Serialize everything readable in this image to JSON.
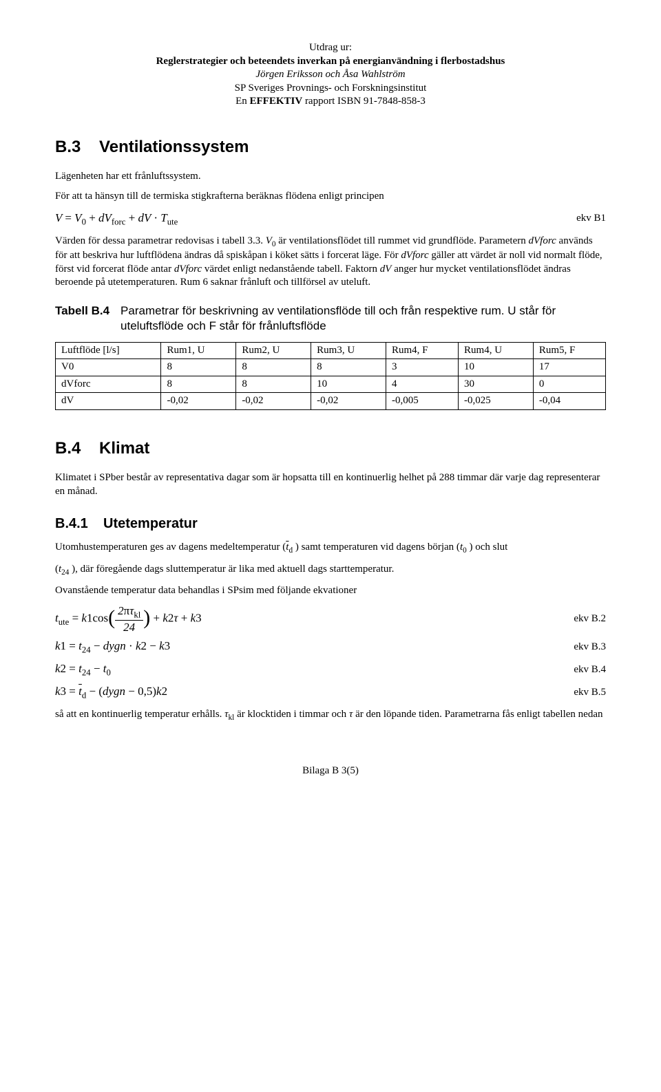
{
  "header": {
    "line1": "Utdrag ur:",
    "line2": "Reglerstrategier och beteendets inverkan på energianvändning i flerbostadshus",
    "line3": "Jörgen Eriksson och Åsa Wahlström",
    "line4": "SP Sveriges Provnings- och Forskningsinstitut",
    "line5_a": "En ",
    "line5_b": "EFFEKTIV",
    "line5_c": " rapport ISBN 91-7848-858-3"
  },
  "sectionB3": {
    "number": "B.3",
    "title": "Ventilationssystem",
    "para1": "Lägenheten har ett frånluftssystem.",
    "para2": "För att ta hänsyn till de termiska stigkrafterna beräknas flödena enligt principen",
    "eq1_label": "ekv  B1",
    "para3_a": "Värden för dessa parametrar redovisas i tabell 3.3. ",
    "para3_b": "V",
    "para3_c": "0",
    "para3_d": " är ventilationsflödet till rummet vid grundflöde. Parametern ",
    "para3_e": "dVforc",
    "para3_f": " används för att beskriva hur luftflödena ändras då spiskåpan i köket sätts i forcerat läge. För ",
    "para3_g": "dVforc",
    "para3_h": " gäller att värdet är noll vid normalt flöde, först vid forcerat flöde antar ",
    "para3_i": "dVforc",
    "para3_j": " värdet enligt nedanstående tabell. Faktorn ",
    "para3_k": "dV",
    "para3_l": " anger hur mycket ventilationsflödet ändras beroende på utetemperaturen. Rum 6 saknar frånluft och tillförsel av uteluft."
  },
  "tableB4": {
    "caption_label": "Tabell B.4",
    "caption_text": "Parametrar för beskrivning av ventilationsflöde till och från respektive rum. U står för uteluftsflöde och F står för frånluftsflöde",
    "columns": [
      "Luftflöde [l/s]",
      "Rum1, U",
      "Rum2, U",
      "Rum3, U",
      "Rum4, F",
      "Rum4, U",
      "Rum5, F"
    ],
    "rows": [
      [
        "V0",
        "8",
        "8",
        "8",
        "3",
        "10",
        "17"
      ],
      [
        "dVforc",
        "8",
        "8",
        "10",
        "4",
        "30",
        "0"
      ],
      [
        "dV",
        "-0,02",
        "-0,02",
        "-0,02",
        "-0,005",
        "-0,025",
        "-0,04"
      ]
    ]
  },
  "sectionB4": {
    "number": "B.4",
    "title": "Klimat",
    "para1": "Klimatet i SPber består av representativa dagar som är hopsatta till en kontinuerlig helhet på 288 timmar där varje dag representerar en månad."
  },
  "sectionB41": {
    "number": "B.4.1",
    "title": "Utetemperatur",
    "para1_a": "Utomhustemperaturen ges av dagens medeltemperatur (",
    "para1_b": ") samt temperaturen vid dagens början (",
    "para1_c": ") och slut",
    "para2_a": "(",
    "para2_b": "), där föregående dags sluttemperatur är lika med aktuell dags starttemperatur.",
    "para3": "Ovanstående temperatur data behandlas i SPsim med följande ekvationer",
    "eq2_label": "ekv  B.2",
    "eq3_label": "ekv  B.3",
    "eq4_label": "ekv  B.4",
    "eq5_label": "ekv  B.5",
    "para4_a": "så att en kontinuerlig temperatur erhålls. ",
    "para4_b": " är klocktiden i timmar och ",
    "para4_c": " är den löpande tiden. Parametrarna fås enligt tabellen nedan"
  },
  "footer": "Bilaga B 3(5)"
}
